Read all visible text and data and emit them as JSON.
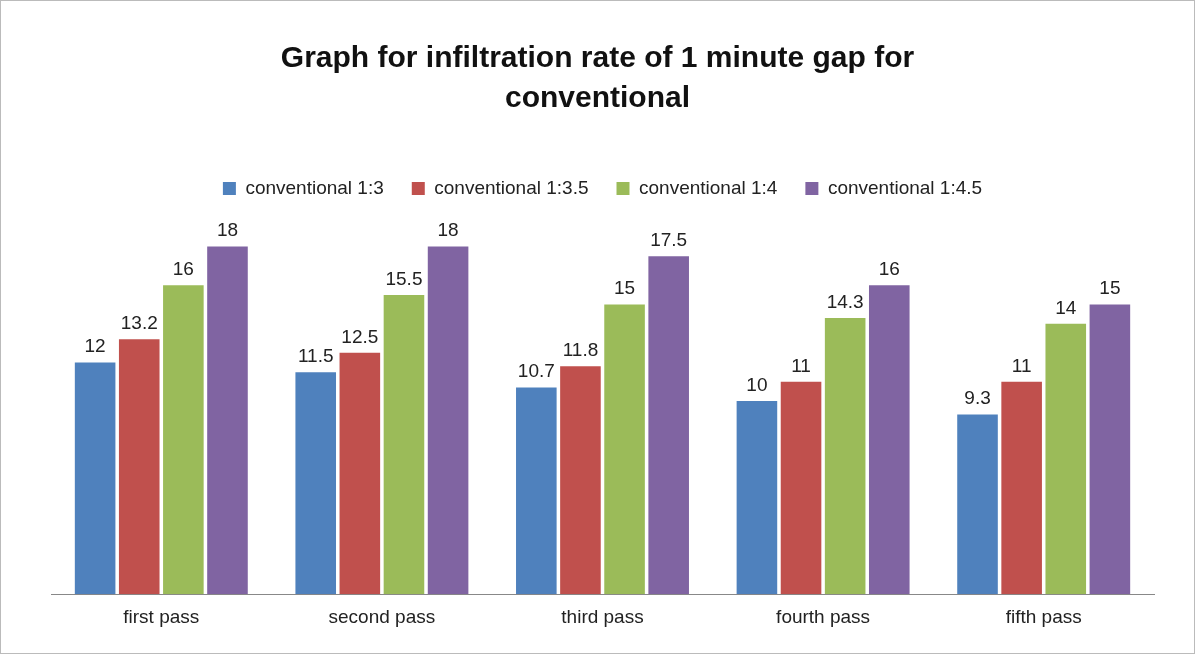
{
  "chart_data": {
    "type": "bar",
    "title": "Graph for infiltration rate of 1 minute gap for conventional",
    "categories": [
      "first pass",
      "second pass",
      "third pass",
      "fourth pass",
      "fifth pass"
    ],
    "series": [
      {
        "name": "conventional 1:3",
        "color": "#4f81bd",
        "values": [
          12,
          11.5,
          10.7,
          10,
          9.3
        ]
      },
      {
        "name": "conventional 1:3.5",
        "color": "#c0504d",
        "values": [
          13.2,
          12.5,
          11.8,
          11,
          11
        ]
      },
      {
        "name": "conventional 1:4",
        "color": "#9bbb59",
        "values": [
          16,
          15.5,
          15,
          14.3,
          14
        ]
      },
      {
        "name": "conventional 1:4.5",
        "color": "#8064a2",
        "values": [
          18,
          18,
          17.5,
          16,
          15
        ]
      }
    ],
    "data_labels": true,
    "legend": "top",
    "grid": false,
    "tick_labels": "x"
  }
}
